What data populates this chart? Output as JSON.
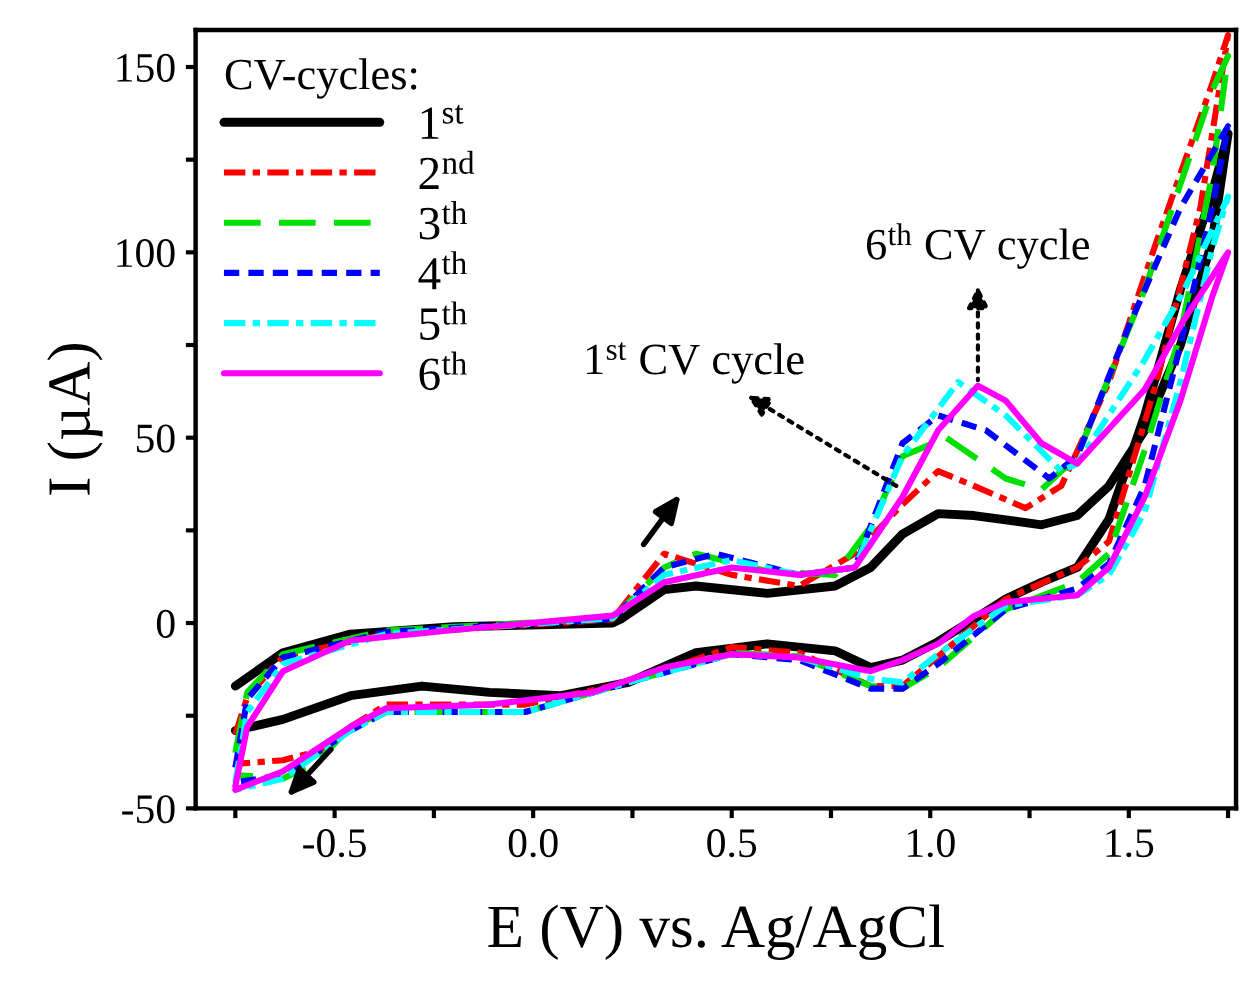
{
  "chart_data": {
    "type": "line",
    "xlabel": "E (V) vs. Ag/AgCl",
    "ylabel": "I (µA)",
    "legend_title": "CV-cycles:",
    "xlim": [
      -0.85,
      1.77
    ],
    "ylim": [
      -50,
      160
    ],
    "xticks": [
      {
        "value": -0.75,
        "label": null
      },
      {
        "value": -0.5,
        "label": "-0.5"
      },
      {
        "value": -0.25,
        "label": null
      },
      {
        "value": 0,
        "label": "0.0"
      },
      {
        "value": 0.25,
        "label": null
      },
      {
        "value": 0.5,
        "label": "0.5"
      },
      {
        "value": 0.75,
        "label": null
      },
      {
        "value": 1,
        "label": "1.0"
      },
      {
        "value": 1.25,
        "label": null
      },
      {
        "value": 1.5,
        "label": "1.5"
      },
      {
        "value": 1.75,
        "label": null
      }
    ],
    "yticks": [
      {
        "value": -50,
        "label": "-50"
      },
      {
        "value": -25,
        "label": null
      },
      0,
      {
        "value": 25,
        "label": null
      },
      50,
      {
        "value": 75,
        "label": null
      },
      100,
      {
        "value": 125,
        "label": null
      },
      150
    ],
    "grid": false,
    "legend": "top left",
    "marker": "none",
    "series": [
      {
        "name": "1$^{st}$",
        "color": "#000000",
        "line_style": "solid",
        "x": [
          -0.75,
          -0.63,
          -0.46,
          -0.2,
          0.2,
          0.22,
          0.33,
          0.41,
          0.59,
          0.76,
          0.85,
          0.93,
          1.02,
          1.11,
          1.28,
          1.37,
          1.45,
          1.54,
          1.63,
          1.71,
          1.75,
          1.71,
          1.63,
          1.54,
          1.45,
          1.37,
          1.28,
          1.19,
          1.11,
          1.02,
          0.93,
          0.85,
          0.76,
          0.59,
          0.41,
          0.24,
          0.07,
          -0.11,
          -0.28,
          -0.46,
          -0.63,
          -0.75
        ],
        "values": [
          -17,
          -8,
          -3,
          -1,
          0,
          1,
          9,
          10,
          8,
          10,
          15,
          24,
          29.5,
          29,
          26.5,
          29,
          37,
          52,
          75,
          103,
          132,
          116,
          90,
          56,
          28,
          15,
          11,
          6.5,
          1,
          -5,
          -10,
          -12,
          -7.5,
          -5.6,
          -8,
          -16,
          -19.6,
          -18.7,
          -17,
          -19.6,
          -26,
          -29
        ]
      },
      {
        "name": "2$^{nd}$",
        "color": "#ff0000",
        "line_style": "dashdot",
        "x": [
          -0.75,
          -0.72,
          -0.63,
          -0.37,
          0.2,
          0.33,
          0.5,
          0.67,
          0.81,
          0.93,
          1.02,
          1.11,
          1.24,
          1.33,
          1.45,
          1.57,
          1.71,
          1.75,
          1.68,
          1.57,
          1.45,
          1.37,
          1.19,
          1.02,
          0.93,
          0.85,
          0.67,
          0.5,
          0.24,
          -0.02,
          -0.37,
          -0.46,
          -0.54,
          -0.63,
          -0.75
        ],
        "values": [
          -30,
          -20,
          -9,
          -3,
          1,
          18.7,
          13,
          10,
          18.7,
          32,
          41,
          37,
          31,
          37,
          65,
          103,
          145.5,
          158.6,
          112,
          65,
          22,
          15,
          6.5,
          -9,
          -17,
          -17,
          -8,
          -6.5,
          -16,
          -22,
          -22,
          -28,
          -34.5,
          -37,
          -38
        ]
      },
      {
        "name": "3$^{th}$",
        "color": "#00e000",
        "line_style": "dashed",
        "x": [
          -0.75,
          -0.72,
          -0.63,
          -0.37,
          0.2,
          0.33,
          0.41,
          0.59,
          0.76,
          0.85,
          0.93,
          1.04,
          1.19,
          1.28,
          1.37,
          1.54,
          1.71,
          1.75,
          1.71,
          1.63,
          1.54,
          1.45,
          1.37,
          1.19,
          1.02,
          0.93,
          0.85,
          0.67,
          0.5,
          0.24,
          -0.02,
          -0.37,
          -0.46,
          -0.54,
          -0.63,
          -0.75
        ],
        "values": [
          -35,
          -18.7,
          -8.4,
          -2,
          1.3,
          15,
          18.7,
          14,
          13,
          26,
          45,
          50,
          39,
          36,
          45,
          90,
          143.7,
          153,
          121,
          78,
          46.6,
          18.7,
          11,
          3.7,
          -12,
          -17.7,
          -17,
          -9,
          -8,
          -16,
          -24,
          -24,
          -28,
          -37,
          -42,
          -41
        ]
      },
      {
        "name": "4$^{th}$",
        "color": "#0000ff",
        "line_style": "dotted",
        "x": [
          -0.75,
          -0.72,
          -0.63,
          -0.37,
          0.2,
          0.33,
          0.46,
          0.67,
          0.81,
          0.93,
          1.02,
          1.14,
          1.3,
          1.37,
          1.5,
          1.63,
          1.75,
          1.71,
          1.63,
          1.54,
          1.45,
          1.37,
          1.19,
          1.02,
          0.93,
          0.85,
          0.67,
          0.5,
          0.24,
          -0.02,
          -0.37,
          -0.46,
          -0.63,
          -0.75
        ],
        "values": [
          -39,
          -20.5,
          -9.3,
          -2.4,
          1.1,
          15,
          18.7,
          13,
          15,
          48.5,
          56,
          52,
          39,
          45,
          80,
          112,
          134,
          112,
          75,
          37,
          16,
          9.3,
          3.7,
          -11,
          -17.7,
          -17.7,
          -10,
          -8.4,
          -16,
          -24,
          -24,
          -29,
          -41,
          -43
        ]
      },
      {
        "name": "5$^{th}$",
        "color": "#00ffff",
        "line_style": "dashdot",
        "x": [
          -0.75,
          -0.72,
          -0.63,
          -0.37,
          0.2,
          0.33,
          0.5,
          0.67,
          0.81,
          0.93,
          1.07,
          1.19,
          1.33,
          1.37,
          1.54,
          1.64,
          1.75,
          1.71,
          1.63,
          1.54,
          1.45,
          1.37,
          1.19,
          1.02,
          0.93,
          0.85,
          0.67,
          0.5,
          0.24,
          -0.02,
          -0.37,
          -0.46,
          -0.63,
          -0.75
        ],
        "values": [
          -43,
          -24,
          -11,
          -3,
          1.3,
          13,
          17,
          13,
          15,
          45,
          65,
          56,
          41,
          43,
          71,
          90,
          115,
          101,
          65,
          30,
          13,
          7.5,
          4.7,
          -8.4,
          -16,
          -15,
          -9.3,
          -8.4,
          -16,
          -24,
          -24,
          -29,
          -42,
          -45
        ]
      },
      {
        "name": "6$^{th}$",
        "color": "#ff00ff",
        "line_style": "solid",
        "x": [
          -0.75,
          -0.72,
          -0.63,
          -0.46,
          -0.2,
          0.2,
          0.33,
          0.5,
          0.67,
          0.81,
          0.93,
          1.02,
          1.12,
          1.19,
          1.28,
          1.37,
          1.54,
          1.64,
          1.75,
          1.71,
          1.63,
          1.54,
          1.45,
          1.37,
          1.19,
          1.11,
          1.02,
          0.93,
          0.85,
          0.67,
          0.5,
          0.33,
          0.15,
          -0.11,
          -0.37,
          -0.46,
          -0.63,
          -0.75
        ],
        "values": [
          -44,
          -28,
          -13,
          -4.7,
          -1.9,
          2,
          11,
          15,
          13,
          15,
          34,
          52,
          64,
          60,
          48.5,
          43,
          63,
          82,
          100,
          88,
          60,
          34,
          15,
          7.5,
          5.6,
          1.9,
          -5.6,
          -10,
          -13,
          -9.3,
          -8.4,
          -12,
          -18.7,
          -22,
          -23,
          -28,
          -40,
          -45
        ]
      }
    ],
    "annotations": [
      {
        "text": "6$^{th}$ CV cycle",
        "x": 1.12,
        "y": 64
      },
      {
        "text": "1$^{st}$ CV cycle",
        "x": 0.93,
        "y": 36
      }
    ]
  }
}
